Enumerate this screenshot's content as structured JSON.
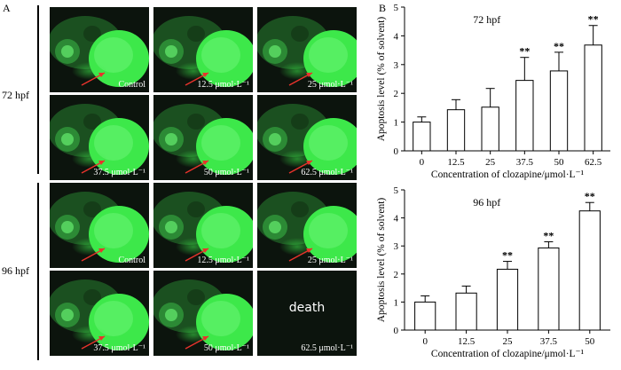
{
  "panel_a": {
    "letter": "A",
    "rows": [
      {
        "label": "72 hpf",
        "tiles": [
          {
            "caption": "Control",
            "dead": false
          },
          {
            "caption": "12.5 μmol·L⁻¹",
            "dead": false
          },
          {
            "caption": "25 μmol·L⁻¹",
            "dead": false
          },
          {
            "caption": "37.5 μmol·L⁻¹",
            "dead": false
          },
          {
            "caption": "50 μmol·L⁻¹",
            "dead": false
          },
          {
            "caption": "62.5 μmol·L⁻¹",
            "dead": false
          }
        ]
      },
      {
        "label": "96 hpf",
        "tiles": [
          {
            "caption": "Control",
            "dead": false
          },
          {
            "caption": "12.5 μmol·L⁻¹",
            "dead": false
          },
          {
            "caption": "25 μmol·L⁻¹",
            "dead": false
          },
          {
            "caption": "37.5 μmol·L⁻¹",
            "dead": false
          },
          {
            "caption": "50 μmol·L⁻¹",
            "dead": false
          },
          {
            "caption": "62.5 μmol·L⁻¹",
            "dead": true,
            "center_text": "death"
          }
        ]
      }
    ]
  },
  "panel_b": {
    "letter": "B"
  },
  "colors": {
    "fluorescence": "#3de84a",
    "arrow": "#e8332c",
    "bar_fill": "#ffffff",
    "axis": "#000000"
  },
  "chart_data": [
    {
      "type": "bar",
      "title": "72 hpf",
      "categories": [
        "0",
        "12.5",
        "25",
        "37.5",
        "50",
        "62.5"
      ],
      "values": [
        1.0,
        1.43,
        1.52,
        2.45,
        2.78,
        3.68
      ],
      "errors": [
        0.18,
        0.35,
        0.65,
        0.8,
        0.65,
        0.68
      ],
      "significance": [
        "",
        "",
        "",
        "**",
        "**",
        "**"
      ],
      "xlabel": "Concentration of clozapine/μmol·L⁻¹",
      "ylabel": "Apoptosis level (% of solvent)",
      "ylim": [
        0,
        5
      ],
      "yticks": [
        "0",
        "1",
        "2",
        "3",
        "4",
        "5"
      ],
      "grid": false
    },
    {
      "type": "bar",
      "title": "96 hpf",
      "categories": [
        "0",
        "12.5",
        "25",
        "37.5",
        "50"
      ],
      "values": [
        1.0,
        1.32,
        2.17,
        2.93,
        4.25
      ],
      "errors": [
        0.22,
        0.25,
        0.28,
        0.22,
        0.3
      ],
      "significance": [
        "",
        "",
        "**",
        "**",
        "**"
      ],
      "xlabel": "Concentration of clozapine/μmol·L⁻¹",
      "ylabel": "Apoptosis level (% of solvent)",
      "ylim": [
        0,
        5
      ],
      "yticks": [
        "0",
        "1",
        "2",
        "3",
        "4",
        "5"
      ],
      "grid": false
    }
  ]
}
